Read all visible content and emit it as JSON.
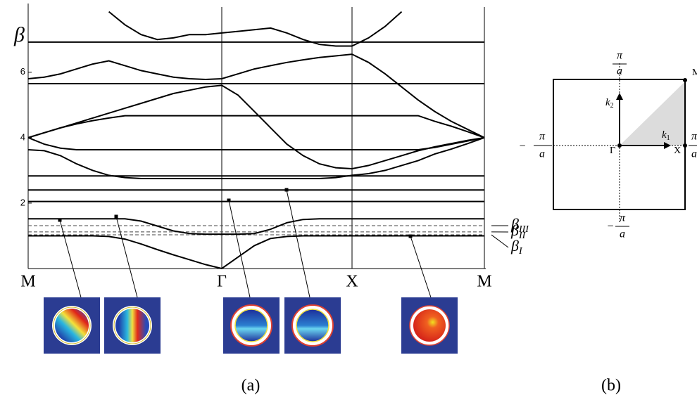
{
  "chart_data": {
    "type": "line",
    "y_label": "β",
    "caption": "(a)",
    "categories": [
      "M",
      null,
      null,
      null,
      null,
      null,
      null,
      null,
      null,
      null,
      null,
      null,
      "Γ",
      null,
      null,
      null,
      null,
      null,
      null,
      null,
      "X",
      null,
      null,
      null,
      null,
      null,
      null,
      null,
      "M"
    ],
    "ylim": [
      0,
      8.1
    ],
    "yticks": [
      2,
      4,
      6
    ],
    "series": [
      {
        "color": "#000000",
        "values": [
          1.0,
          1.0,
          1.0,
          1.0,
          1.0,
          0.98,
          0.9,
          0.75,
          0.58,
          0.42,
          0.27,
          0.12,
          0,
          0.35,
          0.7,
          0.92,
          0.98,
          1.0,
          1.0,
          1.0,
          1.0,
          1.0,
          1.0,
          1.0,
          1.0,
          1.0,
          1.0,
          1.0,
          1.0
        ]
      },
      {
        "color": "#000000",
        "values": [
          1.52,
          1.52,
          1.52,
          1.52,
          1.52,
          1.52,
          1.52,
          1.45,
          1.3,
          1.15,
          1.07,
          1.05,
          1.05,
          1.05,
          1.07,
          1.2,
          1.4,
          1.5,
          1.52,
          1.52,
          1.52,
          1.52,
          1.52,
          1.52,
          1.52,
          1.52,
          1.52,
          1.52,
          1.52
        ]
      },
      {
        "color": "#000000",
        "values": [
          2.05,
          2.05,
          2.05,
          2.05,
          2.05,
          2.05,
          2.05,
          2.05,
          2.05,
          2.05,
          2.05,
          2.05,
          2.05,
          2.05,
          2.05,
          2.05,
          2.05,
          2.05,
          2.05,
          2.05,
          2.05,
          2.05,
          2.05,
          2.05,
          2.05,
          2.05,
          2.05,
          2.05,
          2.05
        ]
      },
      {
        "color": "#000000",
        "values": [
          2.4,
          2.4,
          2.4,
          2.4,
          2.4,
          2.4,
          2.4,
          2.4,
          2.4,
          2.4,
          2.4,
          2.4,
          2.4,
          2.4,
          2.4,
          2.4,
          2.4,
          2.4,
          2.4,
          2.4,
          2.4,
          2.4,
          2.4,
          2.4,
          2.4,
          2.4,
          2.4,
          2.4,
          2.4
        ]
      },
      {
        "color": "#000000",
        "values": [
          2.83,
          2.83,
          2.83,
          2.83,
          2.83,
          2.83,
          2.83,
          2.83,
          2.83,
          2.83,
          2.83,
          2.83,
          2.83,
          2.83,
          2.83,
          2.83,
          2.83,
          2.83,
          2.83,
          2.83,
          2.83,
          2.83,
          2.83,
          2.83,
          2.83,
          2.83,
          2.83,
          2.83,
          2.83
        ]
      },
      {
        "color": "#000000",
        "values": [
          3.63,
          3.6,
          3.45,
          3.2,
          3.0,
          2.85,
          2.78,
          2.75,
          2.75,
          2.75,
          2.75,
          2.75,
          2.75,
          2.75,
          2.75,
          2.75,
          2.75,
          2.75,
          2.75,
          2.78,
          2.85,
          2.9,
          3.0,
          3.15,
          3.3,
          3.5,
          3.65,
          3.82,
          4.0
        ]
      },
      {
        "color": "#000000",
        "values": [
          4.0,
          3.8,
          3.68,
          3.63,
          3.63,
          3.63,
          3.63,
          3.63,
          3.63,
          3.63,
          3.63,
          3.63,
          3.63,
          3.63,
          3.63,
          3.63,
          3.63,
          3.63,
          3.63,
          3.63,
          3.63,
          3.63,
          3.63,
          3.63,
          3.63,
          3.7,
          3.8,
          3.9,
          4.0
        ]
      },
      {
        "color": "#000000",
        "values": [
          4.0,
          4.15,
          4.3,
          4.42,
          4.52,
          4.6,
          4.67,
          4.67,
          4.67,
          4.67,
          4.67,
          4.67,
          4.67,
          4.67,
          4.67,
          4.67,
          4.67,
          4.67,
          4.67,
          4.67,
          4.67,
          4.67,
          4.67,
          4.67,
          4.67,
          4.5,
          4.35,
          4.18,
          4.0
        ]
      },
      {
        "color": "#000000",
        "values": [
          4.0,
          4.15,
          4.3,
          4.45,
          4.6,
          4.75,
          4.9,
          5.05,
          5.2,
          5.35,
          5.45,
          5.55,
          5.6,
          5.3,
          4.8,
          4.3,
          3.8,
          3.45,
          3.2,
          3.08,
          3.05,
          3.15,
          3.3,
          3.45,
          3.6,
          3.72,
          3.82,
          3.92,
          4.0
        ]
      },
      {
        "color": "#000000",
        "values": [
          5.65,
          5.65,
          5.65,
          5.65,
          5.65,
          5.65,
          5.65,
          5.65,
          5.65,
          5.65,
          5.65,
          5.65,
          5.65,
          5.65,
          5.65,
          5.65,
          5.65,
          5.65,
          5.65,
          5.65,
          5.65,
          5.65,
          5.65,
          5.65,
          5.65,
          5.65,
          5.65,
          5.65,
          5.65
        ]
      },
      {
        "color": "#000000",
        "values": [
          5.8,
          5.85,
          5.95,
          6.1,
          6.25,
          6.35,
          6.2,
          6.05,
          5.95,
          5.85,
          5.8,
          5.78,
          5.8,
          5.95,
          6.1,
          6.2,
          6.3,
          6.38,
          6.45,
          6.5,
          6.55,
          6.3,
          5.95,
          5.55,
          5.15,
          4.8,
          4.5,
          4.25,
          4.0
        ]
      },
      {
        "color": "#000000",
        "values": [
          6.92,
          6.92,
          6.92,
          6.92,
          6.92,
          6.92,
          6.92,
          6.92,
          6.92,
          6.92,
          6.92,
          6.92,
          6.92,
          6.92,
          6.92,
          6.92,
          6.92,
          6.92,
          6.92,
          6.92,
          6.92,
          6.92,
          6.92,
          6.92,
          6.92,
          6.92,
          6.92,
          6.92,
          6.92
        ]
      },
      {
        "color": "#000000",
        "values": [
          null,
          null,
          null,
          null,
          null,
          7.85,
          7.45,
          7.15,
          7.0,
          7.05,
          7.15,
          7.15,
          7.2,
          7.25,
          7.3,
          7.35,
          7.2,
          7.0,
          6.85,
          6.8,
          6.8,
          7.05,
          7.4,
          7.85,
          null,
          null,
          null,
          null,
          null
        ]
      }
    ],
    "ref_color": "#444444",
    "ref_lines": [
      {
        "symbol": "β",
        "sub": "III",
        "value": 1.31
      },
      {
        "symbol": "β",
        "sub": "II",
        "value": 1.12
      },
      {
        "symbol": "β",
        "sub": "I",
        "value": 1.03
      }
    ]
  },
  "diagram": {
    "caption": "(b)",
    "points": {
      "M": "M",
      "Gamma": "Γ",
      "X": "X"
    },
    "k1": {
      "k": "k",
      "sub": "1"
    },
    "k2": {
      "k": "k",
      "sub": "2"
    },
    "top": {
      "num": "π",
      "den": "a"
    },
    "right": {
      "num": "π",
      "den": "a"
    },
    "left": {
      "sign": "−",
      "num": "π",
      "den": "a"
    },
    "bottom": {
      "sign": "−",
      "num": "π",
      "den": "a"
    }
  }
}
